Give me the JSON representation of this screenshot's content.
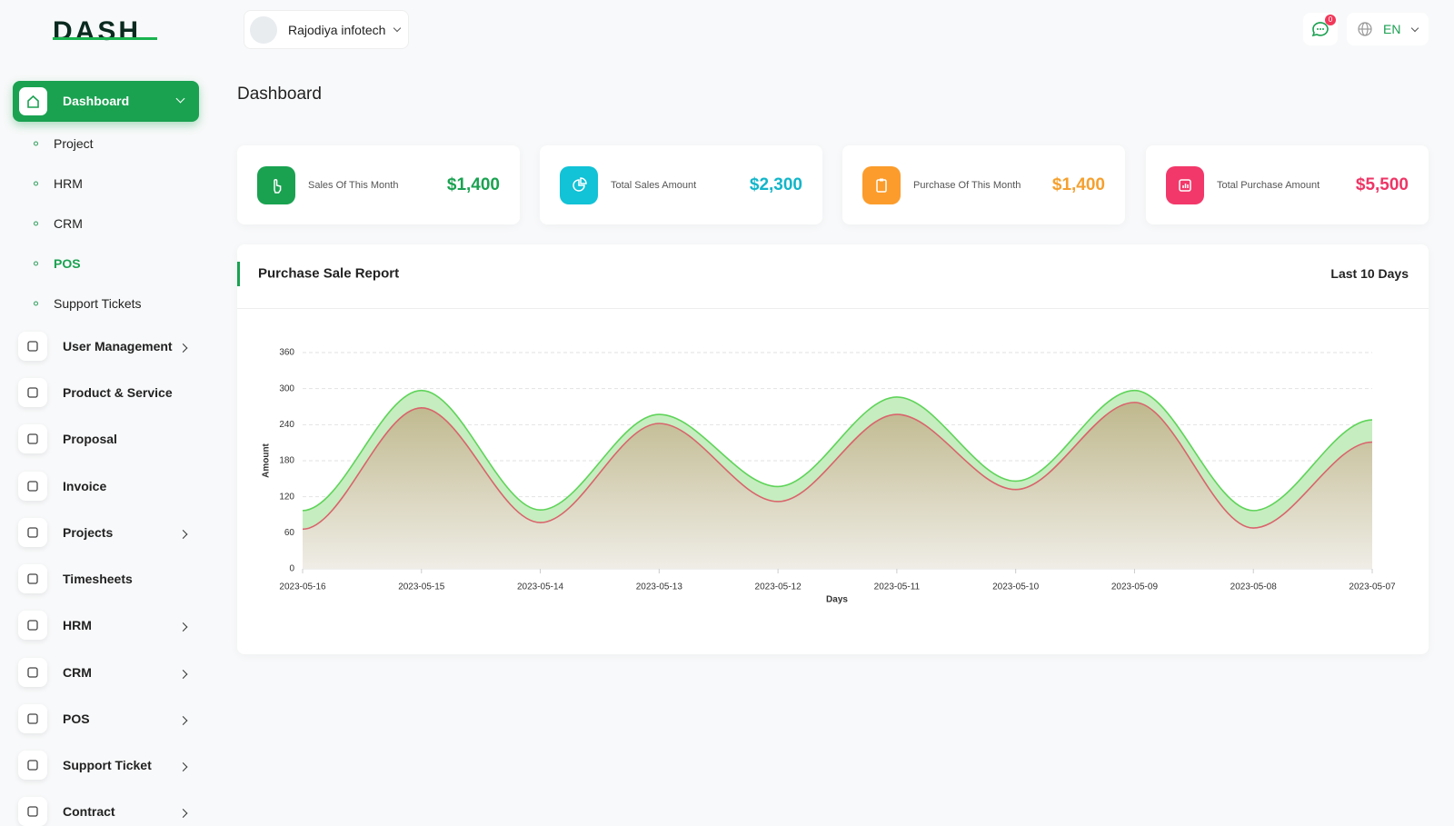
{
  "header": {
    "logo": "DASH",
    "company": "Rajodiya infotech",
    "notifications": "0",
    "language": "EN"
  },
  "sidebar": {
    "items": [
      {
        "label": "Dashboard",
        "children": [
          "Project",
          "HRM",
          "CRM",
          "POS",
          "Support Tickets"
        ]
      },
      {
        "label": "User Management"
      },
      {
        "label": "Product & Service"
      },
      {
        "label": "Proposal"
      },
      {
        "label": "Invoice"
      },
      {
        "label": "Projects"
      },
      {
        "label": "Timesheets"
      },
      {
        "label": "HRM"
      },
      {
        "label": "CRM"
      },
      {
        "label": "POS"
      },
      {
        "label": "Support Ticket"
      },
      {
        "label": "Contract"
      }
    ]
  },
  "page_title": "Dashboard",
  "cards": [
    {
      "label": "Sales Of This Month",
      "value": "$1,400"
    },
    {
      "label": "Total Sales Amount",
      "value": "$2,300"
    },
    {
      "label": "Purchase Of This Month",
      "value": "$1,400"
    },
    {
      "label": "Total Purchase Amount",
      "value": "$5,500"
    }
  ],
  "report": {
    "title": "Purchase Sale Report",
    "period": "Last 10 Days"
  },
  "chart_data": {
    "type": "area",
    "x_label": "Days",
    "y_label": "Amount",
    "categories": [
      "2023-05-16",
      "2023-05-15",
      "2023-05-14",
      "2023-05-13",
      "2023-05-12",
      "2023-05-11",
      "2023-05-10",
      "2023-05-09",
      "2023-05-08",
      "2023-05-07"
    ],
    "series": [
      {
        "color": "#5fd45a",
        "values": [
          97,
          297,
          98,
          257,
          137,
          286,
          146,
          297,
          97,
          248
        ]
      },
      {
        "color": "#d9646c",
        "values": [
          66,
          268,
          77,
          242,
          112,
          257,
          132,
          277,
          68,
          211
        ]
      }
    ],
    "ylim": [
      0,
      360
    ],
    "yticks": [
      0,
      60,
      120,
      180,
      240,
      300,
      360
    ],
    "grid": true
  }
}
